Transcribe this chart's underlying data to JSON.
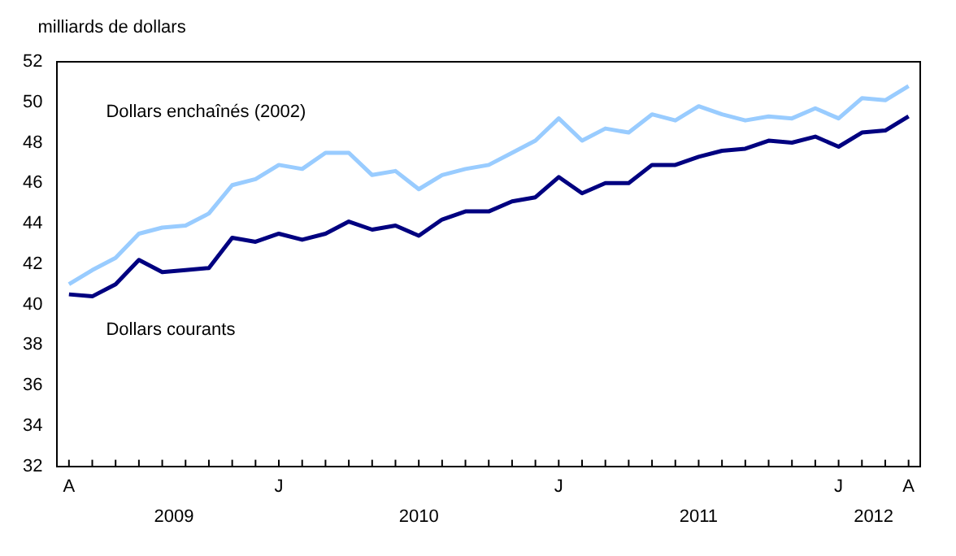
{
  "chart_data": {
    "type": "line",
    "ylabel": "milliards de dollars",
    "categories": [
      "A",
      null,
      null,
      null,
      null,
      null,
      null,
      null,
      null,
      "J",
      null,
      null,
      null,
      null,
      null,
      null,
      null,
      null,
      null,
      null,
      null,
      "J",
      null,
      null,
      null,
      null,
      null,
      null,
      null,
      null,
      null,
      null,
      null,
      "J",
      null,
      null,
      "A"
    ],
    "series": [
      {
        "name": "Dollars enchaînés (2002)",
        "color": "#99ccff",
        "values": [
          41.0,
          41.7,
          42.3,
          43.5,
          43.8,
          43.9,
          44.5,
          45.9,
          46.2,
          46.9,
          46.7,
          47.5,
          47.5,
          46.4,
          46.6,
          45.7,
          46.4,
          46.7,
          46.9,
          47.5,
          48.1,
          49.2,
          48.1,
          48.7,
          48.5,
          49.4,
          49.1,
          49.8,
          49.4,
          49.1,
          49.3,
          49.2,
          49.7,
          49.2,
          50.2,
          50.1,
          50.8
        ]
      },
      {
        "name": "Dollars courants",
        "color": "#000080",
        "values": [
          40.5,
          40.4,
          41.0,
          42.2,
          41.6,
          41.7,
          41.8,
          43.3,
          43.1,
          43.5,
          43.2,
          43.5,
          44.1,
          43.7,
          43.9,
          43.4,
          44.2,
          44.6,
          44.6,
          45.1,
          45.3,
          46.3,
          45.5,
          46.0,
          46.0,
          46.9,
          46.9,
          47.3,
          47.6,
          47.7,
          48.1,
          48.0,
          48.3,
          47.8,
          48.5,
          48.6,
          49.3
        ]
      }
    ],
    "ylim": [
      32,
      52
    ],
    "yticks": [
      32,
      34,
      36,
      38,
      40,
      42,
      44,
      46,
      48,
      50,
      52
    ],
    "annotations": [
      "2009",
      "2010",
      "2011",
      "2012"
    ],
    "grid": false,
    "legend": false,
    "marker": "none",
    "line_style": "solid"
  }
}
